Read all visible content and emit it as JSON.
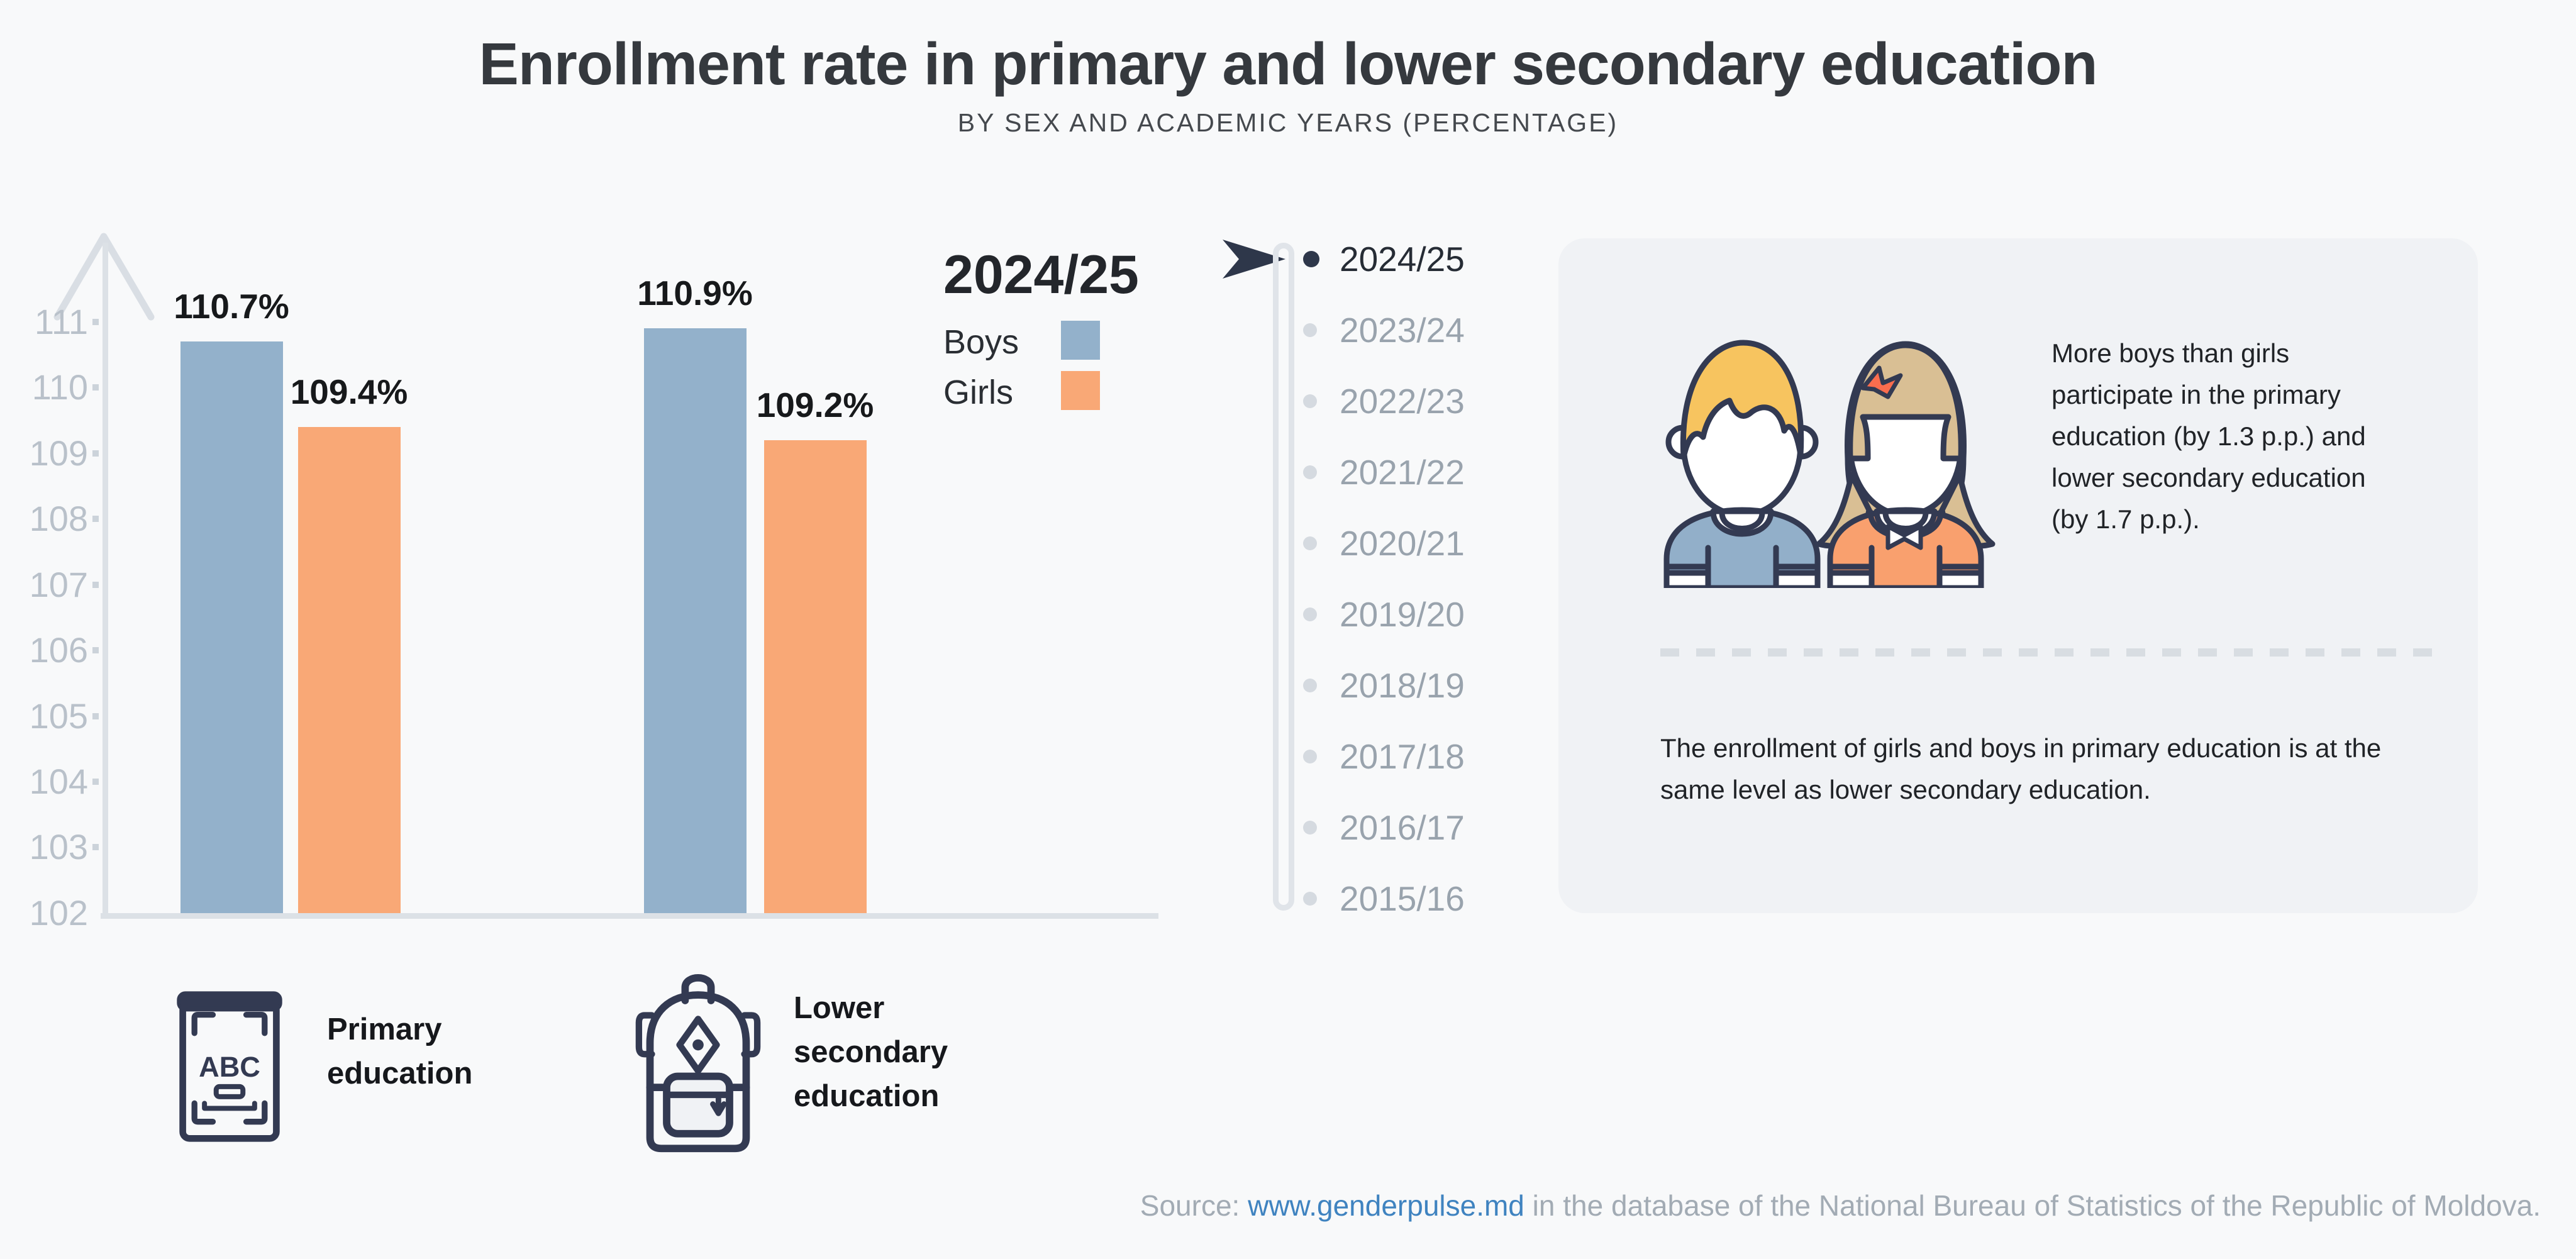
{
  "header": {
    "title": "Enrollment rate in primary and lower secondary education",
    "subtitle": "BY SEX AND ACADEMIC YEARS (PERCENTAGE)"
  },
  "chart_data": {
    "type": "bar",
    "title": "Enrollment rate in primary and lower secondary education",
    "categories": [
      "Primary education",
      "Lower secondary education"
    ],
    "series": [
      {
        "name": "Boys",
        "color": "#93b1cb",
        "values": [
          110.7,
          110.9
        ]
      },
      {
        "name": "Girls",
        "color": "#f9a876",
        "values": [
          109.4,
          109.2
        ]
      }
    ],
    "unit": "%",
    "ylim": [
      102,
      111
    ],
    "y_ticks": [
      "111",
      "110",
      "109",
      "108",
      "107",
      "106",
      "105",
      "104",
      "103",
      "102"
    ],
    "grid": false,
    "legend_position": "top-right"
  },
  "legend": {
    "year": "2024/25",
    "items": [
      {
        "label": "Boys",
        "color": "#93b1cb"
      },
      {
        "label": "Girls",
        "color": "#f9a876"
      }
    ]
  },
  "timeline": {
    "active_year": "2024/25",
    "years": [
      "2024/25",
      "2023/24",
      "2022/23",
      "2021/22",
      "2020/21",
      "2019/20",
      "2018/19",
      "2017/18",
      "2016/17",
      "2015/16"
    ]
  },
  "category_labels": [
    {
      "icon": "book-icon",
      "label": "Primary education"
    },
    {
      "icon": "backpack-icon",
      "label": "Lower secondary education"
    }
  ],
  "infobox": {
    "illustration": "boy-girl-illustration",
    "para1": "More boys than girls participate in the primary education (by 1.3 p.p.) and lower secondary education (by 1.7 p.p.).",
    "para2": "The enrollment of girls and boys in primary education is at the same level as lower secondary education."
  },
  "source": {
    "prefix": "Source: ",
    "link": "www.genderpulse.md",
    "suffix": " in the database of the National Bureau of Statistics of the Republic of Moldova."
  },
  "colors": {
    "background": "#f8f9fa",
    "panel": "#f0f2f5",
    "boys_bar": "#93b1cb",
    "girls_bar": "#f9a876",
    "dark_navy": "#333a52",
    "axis": "#dce1e6",
    "tick_label": "#b9c1ca",
    "year_inactive": "#99a3ad",
    "year_active": "#262c35",
    "link": "#3f83c0",
    "source_text": "#a2abb4",
    "boy_hair": "#f7c45f",
    "girl_hair": "#d9bf94",
    "bow": "#fb6d4e"
  }
}
